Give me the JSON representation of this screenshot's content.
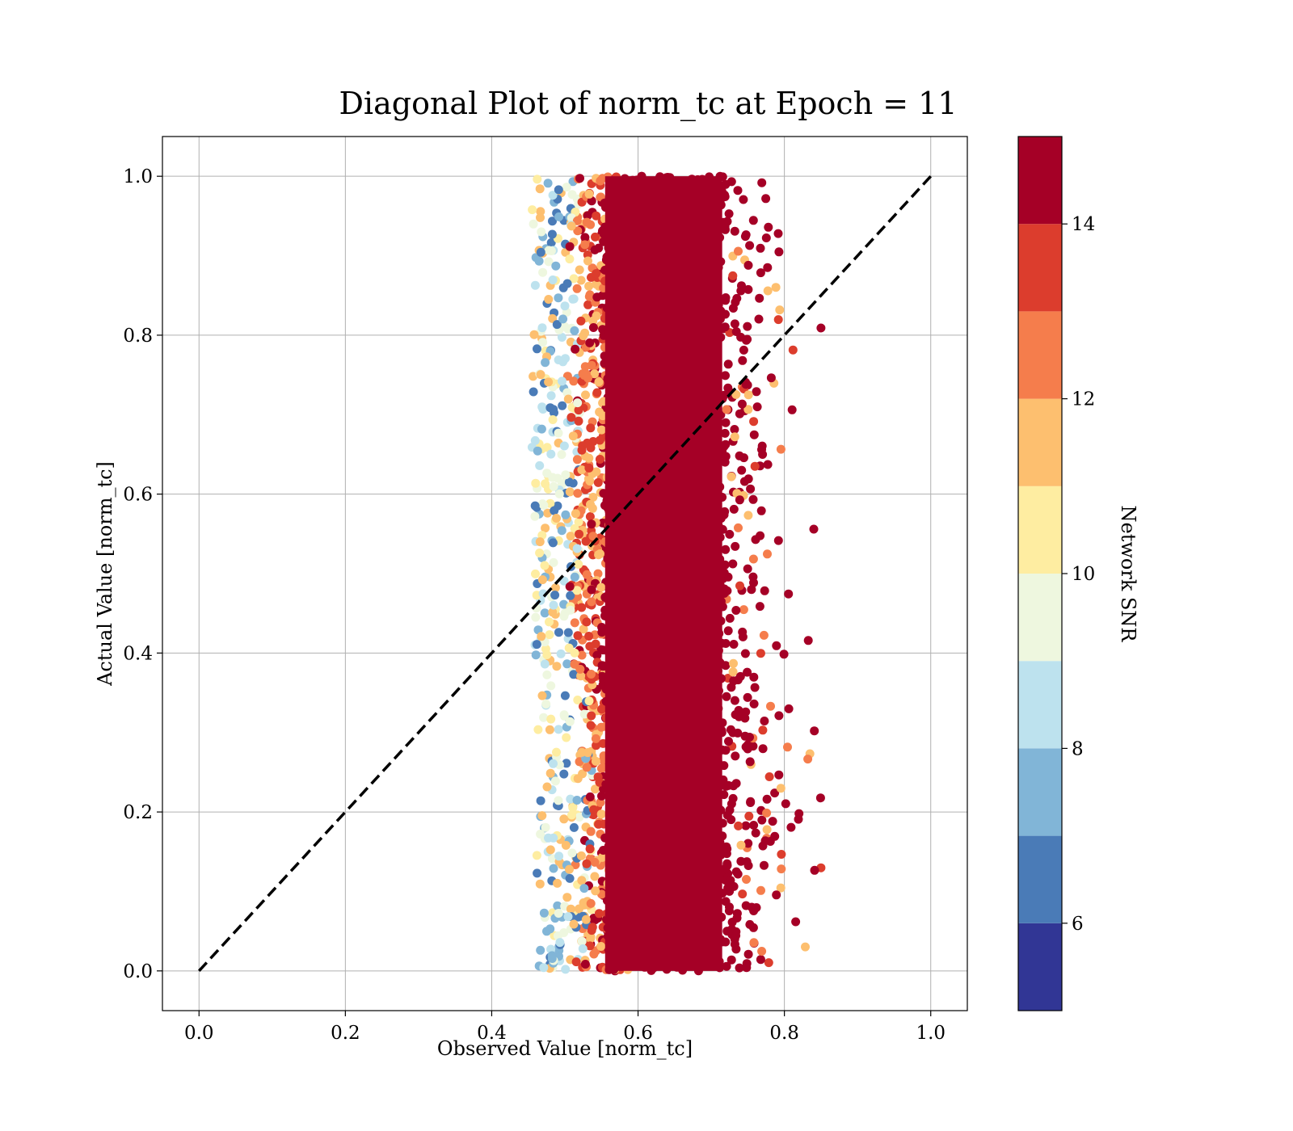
{
  "chart_data": {
    "type": "scatter",
    "title": "Diagonal Plot of norm_tc at Epoch = 11",
    "xlabel": "Observed Value [norm_tc]",
    "ylabel": "Actual Value [norm_tc]",
    "xlim": [
      -0.05,
      1.05
    ],
    "ylim": [
      -0.05,
      1.05
    ],
    "xticks": [
      "0.0",
      "0.2",
      "0.4",
      "0.6",
      "0.8",
      "1.0"
    ],
    "yticks": [
      "0.0",
      "0.2",
      "0.4",
      "0.6",
      "0.8",
      "1.0"
    ],
    "grid": true,
    "reference_line": {
      "style": "dashed",
      "color": "#000000",
      "from": [
        0,
        0
      ],
      "to": [
        1,
        1
      ]
    },
    "scatter_spread": {
      "x_range": [
        0.43,
        0.85
      ],
      "y_range": [
        0.0,
        1.0
      ],
      "dense_core_x": [
        0.55,
        0.72
      ]
    },
    "colorbar": {
      "label": "Network SNR",
      "range": [
        5,
        15
      ],
      "ticks": [
        "6",
        "8",
        "10",
        "12",
        "14"
      ],
      "levels": [
        {
          "from": 5,
          "to": 6,
          "color": "#313695"
        },
        {
          "from": 6,
          "to": 7,
          "color": "#4a7bb7"
        },
        {
          "from": 7,
          "to": 8,
          "color": "#81b5d7"
        },
        {
          "from": 8,
          "to": 9,
          "color": "#bde2ee"
        },
        {
          "from": 9,
          "to": 10,
          "color": "#eef7df"
        },
        {
          "from": 10,
          "to": 11,
          "color": "#feeda1"
        },
        {
          "from": 11,
          "to": 12,
          "color": "#fdbf6f"
        },
        {
          "from": 12,
          "to": 13,
          "color": "#f57d4c"
        },
        {
          "from": 13,
          "to": 14,
          "color": "#dc3d2d"
        },
        {
          "from": 14,
          "to": 15,
          "color": "#a50026"
        }
      ]
    }
  }
}
